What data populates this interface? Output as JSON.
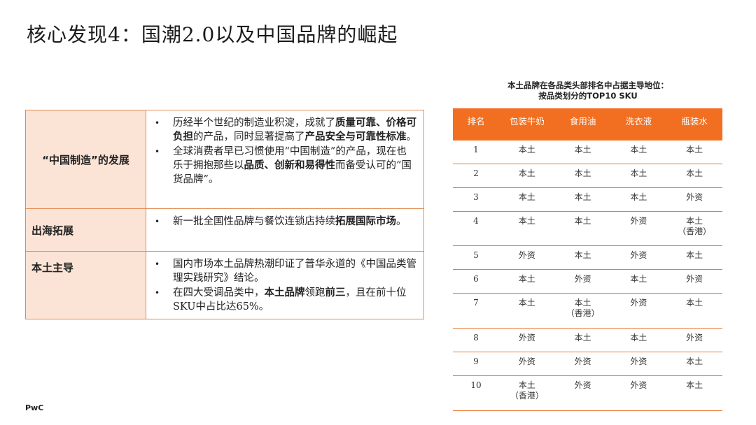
{
  "title": "核心发现4：国潮2.0以及中国品牌的崛起",
  "findings": [
    {
      "label": "“中国制造”的发展",
      "bullets": [
        {
          "parts": [
            {
              "t": "历经半个世纪的制造业积淀，成就了",
              "b": false
            },
            {
              "t": "质量可靠、价格可负担",
              "b": true
            },
            {
              "t": "的产品，同时显著提高了",
              "b": false
            },
            {
              "t": "产品安全与可靠性标准",
              "b": true
            },
            {
              "t": "。",
              "b": false
            }
          ]
        },
        {
          "parts": [
            {
              "t": "全球消费者早已习惯使用“中国制造”的产品，现在也乐于拥抱那些以",
              "b": false
            },
            {
              "t": "品质、创新和易得性",
              "b": true
            },
            {
              "t": "而备受认可的“国货品牌”。",
              "b": false
            }
          ]
        }
      ]
    },
    {
      "label": "出海拓展",
      "bullets": [
        {
          "parts": [
            {
              "t": "新一批全国性品牌与餐饮连锁店持续",
              "b": false
            },
            {
              "t": "拓展国际市场",
              "b": true
            },
            {
              "t": "。",
              "b": false
            }
          ]
        }
      ]
    },
    {
      "label": "本土主导",
      "bullets": [
        {
          "parts": [
            {
              "t": "国内市场本土品牌热潮印证了普华永道的《中国品类管理实践研究》结论。",
              "b": false
            }
          ]
        },
        {
          "parts": [
            {
              "t": "在四大受调品类中，",
              "b": false
            },
            {
              "t": "本土品牌",
              "b": true
            },
            {
              "t": "领跑",
              "b": false
            },
            {
              "t": "前三",
              "b": true
            },
            {
              "t": "，且在前十位SKU中占比达65%。",
              "b": false
            }
          ]
        }
      ]
    }
  ],
  "sku_table": {
    "title_line1": "本土品牌在各品类头部排名中占据主导地位：",
    "title_line2": "按品类划分的TOP10 SKU",
    "headers": [
      "排名",
      "包装牛奶",
      "食用油",
      "洗衣液",
      "瓶装水"
    ],
    "rows": [
      [
        "1",
        "本土",
        "本土",
        "本土",
        "本土"
      ],
      [
        "2",
        "本土",
        "本土",
        "本土",
        "本土"
      ],
      [
        "3",
        "本土",
        "本土",
        "本土",
        "外资"
      ],
      [
        "4",
        "本土",
        "本土",
        "外资",
        "本土\n（香港）"
      ],
      [
        "5",
        "外资",
        "本土",
        "外资",
        "本土"
      ],
      [
        "6",
        "本土",
        "外资",
        "本土",
        "外资"
      ],
      [
        "7",
        "本土",
        "本土\n（香港）",
        "外资",
        "本土"
      ],
      [
        "8",
        "外资",
        "本土",
        "本土",
        "外资"
      ],
      [
        "9",
        "外资",
        "外资",
        "外资",
        "本土"
      ],
      [
        "10",
        "本土\n（香港）",
        "外资",
        "外资",
        "本土"
      ]
    ]
  },
  "footer": "PwC",
  "colors": {
    "accent": "#f26f21",
    "header_fill": "#fbe4d6",
    "border": "#e08a52"
  }
}
